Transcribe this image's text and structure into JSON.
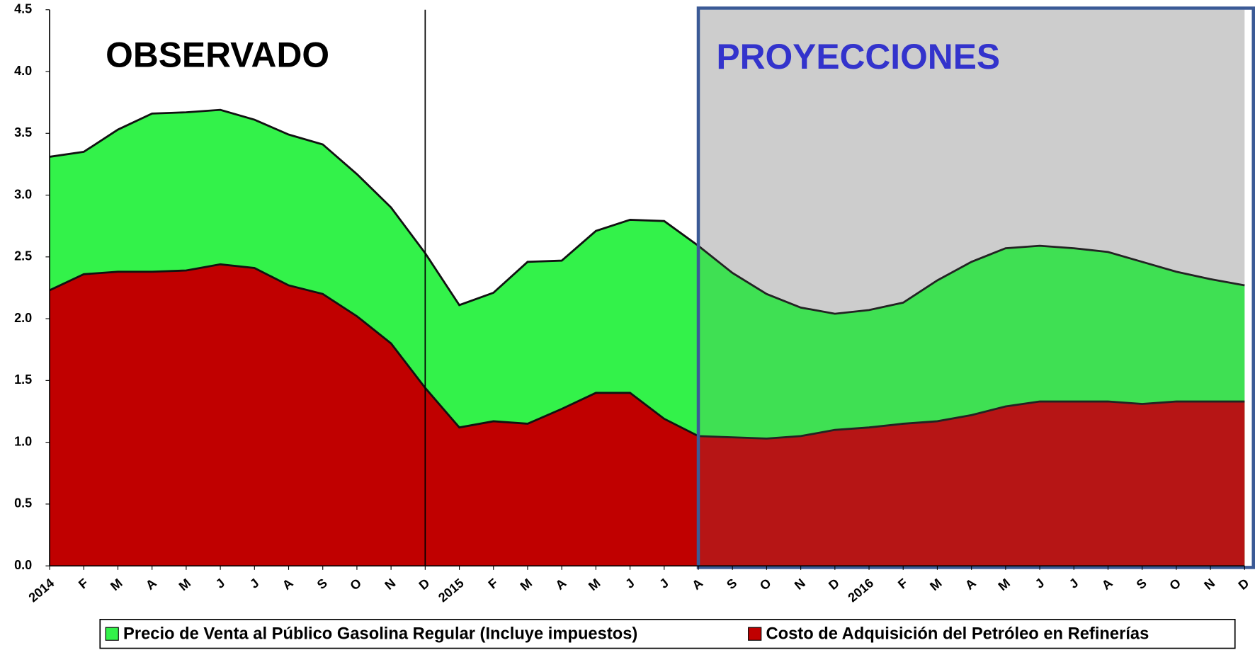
{
  "chart_data": {
    "type": "area",
    "annotations": [
      "OBSERVADO",
      "PROYECCIONES"
    ],
    "categories": [
      "2014",
      "F",
      "M",
      "A",
      "M",
      "J",
      "J",
      "A",
      "S",
      "O",
      "N",
      "D",
      "2015",
      "F",
      "M",
      "A",
      "M",
      "J",
      "J",
      "A",
      "S",
      "O",
      "N",
      "D",
      "2016",
      "F",
      "M",
      "A",
      "M",
      "J",
      "J",
      "A",
      "S",
      "O",
      "N",
      "D"
    ],
    "series": [
      {
        "name": "Precio de Venta al Público Gasolina Regular (Incluye impuestos)",
        "color": "#33f24a",
        "values": [
          3.31,
          3.35,
          3.53,
          3.66,
          3.67,
          3.69,
          3.61,
          3.49,
          3.41,
          3.17,
          2.9,
          2.53,
          2.11,
          2.21,
          2.46,
          2.47,
          2.71,
          2.8,
          2.79,
          2.59,
          2.37,
          2.2,
          2.09,
          2.04,
          2.07,
          2.13,
          2.31,
          2.46,
          2.57,
          2.59,
          2.57,
          2.54,
          2.46,
          2.38,
          2.32,
          2.27
        ]
      },
      {
        "name": "Costo de Adquisición del Petróleo en Refinerías",
        "color": "#c00000",
        "values": [
          2.23,
          2.36,
          2.38,
          2.38,
          2.39,
          2.44,
          2.41,
          2.27,
          2.2,
          2.02,
          1.8,
          1.44,
          1.12,
          1.17,
          1.15,
          1.27,
          1.4,
          1.4,
          1.19,
          1.05,
          1.04,
          1.03,
          1.05,
          1.1,
          1.12,
          1.15,
          1.17,
          1.22,
          1.29,
          1.33,
          1.33,
          1.33,
          1.31,
          1.33,
          1.33,
          1.33
        ]
      }
    ],
    "ylim": [
      0,
      4.5
    ],
    "yticks": [
      {
        "value": 0,
        "label": "0.0"
      },
      0.5,
      {
        "value": 1,
        "label": "1.0"
      },
      1.5,
      {
        "value": 2,
        "label": "2.0"
      },
      2.5,
      {
        "value": 3,
        "label": "3.0"
      },
      3.5,
      {
        "value": 4,
        "label": "4.0"
      },
      4.5
    ],
    "legend": "bottom"
  }
}
